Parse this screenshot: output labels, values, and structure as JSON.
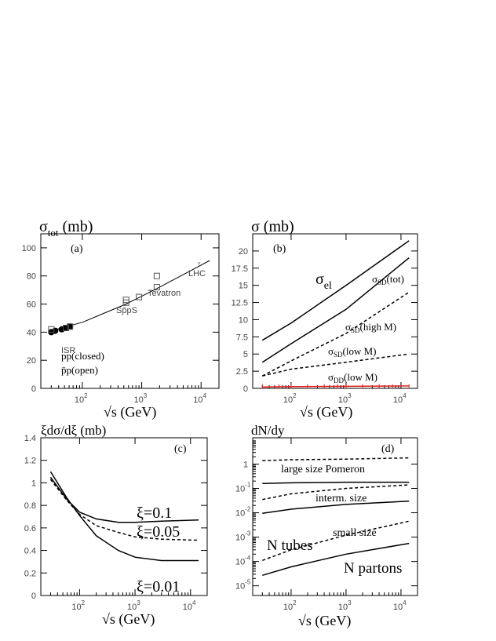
{
  "chart_data": [
    {
      "id": "a",
      "type": "scatter",
      "title": "σtot (mb)",
      "title_main": "σ",
      "title_sub": "tot",
      "title_unit": " (mb)",
      "panel_label": "(a)",
      "xlabel": "√s (GeV)",
      "xscale": "log",
      "xlim": [
        20,
        20000
      ],
      "ylim": [
        0,
        110
      ],
      "yticks": [
        0,
        20,
        40,
        60,
        80,
        100
      ],
      "xticks": [
        {
          "value": 100,
          "base": "10",
          "exp": "2"
        },
        {
          "value": 1000,
          "base": "10",
          "exp": "3"
        },
        {
          "value": 10000,
          "base": "10",
          "exp": "4"
        }
      ],
      "series": [
        {
          "name": "pp(closed)",
          "style": "filled-circle",
          "x": [
            30,
            35,
            45,
            53,
            62
          ],
          "y": [
            40,
            41,
            42,
            43,
            44
          ]
        },
        {
          "name": "p̄p(open)",
          "style": "open-square",
          "x": [
            30,
            53,
            62,
            546,
            546,
            900,
            1800,
            1800
          ],
          "y": [
            42,
            43,
            44,
            61,
            63,
            65,
            72,
            80
          ]
        }
      ],
      "fit_curve": {
        "x": [
          30,
          100,
          546,
          1800,
          14000
        ],
        "y": [
          41,
          47,
          60,
          71,
          91
        ]
      },
      "legend": [
        "pp(closed)",
        "p̄p(open)"
      ],
      "annotations": [
        "ISR",
        "Sp̄pS",
        "Tevatron",
        "LHC"
      ],
      "annotation_arrow": "↑"
    },
    {
      "id": "b",
      "type": "line",
      "title": "σ (mb)",
      "title_main": "σ",
      "title_unit": " (mb)",
      "panel_label": "(b)",
      "xlabel": "√s (GeV)",
      "xscale": "log",
      "xlim": [
        20,
        20000
      ],
      "ylim": [
        0,
        22.5
      ],
      "yticks": [
        0,
        2.5,
        5,
        7.5,
        10,
        12.5,
        15,
        17.5,
        20
      ],
      "ytick_labels": [
        "0",
        "2.5",
        "5",
        "7.5",
        "10",
        "12.5",
        "15",
        "17.5",
        "20"
      ],
      "xticks": [
        {
          "value": 100,
          "base": "10",
          "exp": "2"
        },
        {
          "value": 1000,
          "base": "10",
          "exp": "3"
        },
        {
          "value": 10000,
          "base": "10",
          "exp": "4"
        }
      ],
      "series": [
        {
          "name": "σel",
          "style": "solid",
          "x": [
            30,
            100,
            1000,
            14000
          ],
          "y": [
            7,
            9.5,
            15,
            21.5
          ]
        },
        {
          "name": "σSD(tot)",
          "style": "solid",
          "x": [
            30,
            100,
            1000,
            14000
          ],
          "y": [
            3.8,
            6.5,
            11.5,
            19
          ]
        },
        {
          "name": "σSD(high M)",
          "style": "dashed",
          "x": [
            30,
            100,
            1000,
            14000
          ],
          "y": [
            1.8,
            4,
            8,
            14
          ]
        },
        {
          "name": "σSD(low M)",
          "style": "dashed",
          "x": [
            30,
            100,
            1000,
            14000
          ],
          "y": [
            1.8,
            2.8,
            3.8,
            5
          ]
        },
        {
          "name": "σDD(low M)",
          "style": "red-solid",
          "x": [
            30,
            100,
            1000,
            14000
          ],
          "y": [
            0.2,
            0.25,
            0.3,
            0.35
          ]
        }
      ],
      "labels": [
        {
          "main": "σ",
          "sub": "el",
          "after": ""
        },
        {
          "main": "σ",
          "sub": "SD",
          "after": "(tot)"
        },
        {
          "main": "σ",
          "sub": "SD",
          "after": "(high M)"
        },
        {
          "main": "σ",
          "sub": "SD",
          "after": "(low M)"
        },
        {
          "main": "σ",
          "sub": "DD",
          "after": "(low M)"
        }
      ],
      "red_color": "#dd2222"
    },
    {
      "id": "c",
      "type": "line",
      "title": "ξdσ/dξ (mb)",
      "panel_label": "(c)",
      "xlabel": "√s (GeV)",
      "xscale": "log",
      "xlim": [
        20,
        20000
      ],
      "ylim": [
        0,
        1.4
      ],
      "yticks": [
        0,
        0.2,
        0.4,
        0.6,
        0.8,
        1,
        1.2,
        1.4
      ],
      "ytick_labels": [
        "0",
        "0.2",
        "0.4",
        "0.6",
        "0.8",
        "1",
        "1.2",
        "1.4"
      ],
      "xticks": [
        {
          "value": 100,
          "base": "10",
          "exp": "2"
        },
        {
          "value": 1000,
          "base": "10",
          "exp": "3"
        },
        {
          "value": 10000,
          "base": "10",
          "exp": "4"
        }
      ],
      "series": [
        {
          "name": "ξ=0.1",
          "style": "solid",
          "x": [
            30,
            60,
            100,
            200,
            500,
            1000,
            3000,
            14000
          ],
          "y": [
            1.05,
            0.85,
            0.74,
            0.68,
            0.65,
            0.65,
            0.66,
            0.67
          ]
        },
        {
          "name": "ξ=0.05",
          "style": "dashed",
          "x": [
            30,
            60,
            100,
            200,
            500,
            1000,
            3000,
            14000
          ],
          "y": [
            1.03,
            0.84,
            0.72,
            0.62,
            0.56,
            0.52,
            0.5,
            0.49
          ]
        },
        {
          "name": "ξ=0.01",
          "style": "solid",
          "x": [
            30,
            60,
            100,
            200,
            500,
            1000,
            3000,
            14000
          ],
          "y": [
            1.1,
            0.86,
            0.71,
            0.53,
            0.4,
            0.34,
            0.31,
            0.31
          ]
        }
      ]
    },
    {
      "id": "d",
      "type": "line",
      "title": "dN/dy",
      "panel_label": "(d)",
      "xlabel": "√s (GeV)",
      "xscale": "log",
      "yscale": "log",
      "xlim": [
        20,
        20000
      ],
      "ylim": [
        4e-06,
        12
      ],
      "yticks": [
        {
          "value": 1e-05,
          "label": "10",
          "exp": "-5"
        },
        {
          "value": 0.0001,
          "label": "10",
          "exp": "-4"
        },
        {
          "value": 0.001,
          "label": "10",
          "exp": "-3"
        },
        {
          "value": 0.01,
          "label": "10",
          "exp": "-2"
        },
        {
          "value": 0.1,
          "label": "10",
          "exp": "-1"
        },
        {
          "value": 1,
          "label": "1",
          "exp": ""
        }
      ],
      "xticks": [
        {
          "value": 100,
          "base": "10",
          "exp": "2"
        },
        {
          "value": 1000,
          "base": "10",
          "exp": "3"
        },
        {
          "value": 10000,
          "base": "10",
          "exp": "4"
        }
      ],
      "series": [
        {
          "style": "dashed",
          "x": [
            30,
            100,
            1000,
            14000
          ],
          "y": [
            1.4,
            1.5,
            1.6,
            1.8
          ]
        },
        {
          "style": "solid",
          "x": [
            30,
            100,
            1000,
            14000
          ],
          "y": [
            0.16,
            0.17,
            0.18,
            0.18
          ]
        },
        {
          "style": "dashed",
          "x": [
            30,
            100,
            1000,
            14000
          ],
          "y": [
            0.035,
            0.06,
            0.1,
            0.14
          ]
        },
        {
          "style": "solid",
          "x": [
            30,
            100,
            1000,
            14000
          ],
          "y": [
            0.0095,
            0.014,
            0.022,
            0.03
          ]
        },
        {
          "style": "dashed",
          "x": [
            30,
            100,
            1000,
            14000
          ],
          "y": [
            0.00011,
            0.0003,
            0.0012,
            0.0045
          ]
        },
        {
          "style": "solid",
          "x": [
            30,
            100,
            1000,
            14000
          ],
          "y": [
            2.7e-05,
            6e-05,
            0.0002,
            0.00055
          ]
        }
      ],
      "labels": [
        "large size Pomeron",
        "interm. size",
        "small size",
        "N tubes",
        "N partons"
      ]
    }
  ]
}
